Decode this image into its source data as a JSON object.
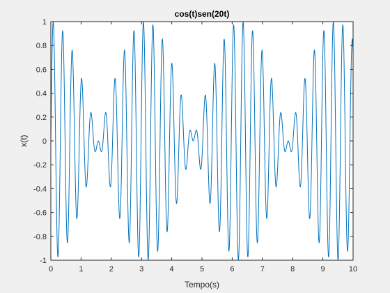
{
  "chart_data": {
    "type": "line",
    "title": "cos(t)sen(20t)",
    "xlabel": "Tempo(s)",
    "ylabel": "x(t)",
    "xlim": [
      0,
      10
    ],
    "ylim": [
      -1,
      1
    ],
    "x_ticks": [
      0,
      1,
      2,
      3,
      4,
      5,
      6,
      7,
      8,
      9,
      10
    ],
    "y_ticks": [
      -1,
      -0.8,
      -0.6,
      -0.4,
      -0.2,
      0,
      0.2,
      0.4,
      0.6,
      0.8,
      1
    ],
    "x_tick_labels": [
      "0",
      "1",
      "2",
      "3",
      "4",
      "5",
      "6",
      "7",
      "8",
      "9",
      "10"
    ],
    "y_tick_labels": [
      "-1",
      "-0.8",
      "-0.6",
      "-0.4",
      "-0.2",
      "0",
      "0.2",
      "0.4",
      "0.6",
      "0.8",
      "1"
    ],
    "grid": false,
    "series": [
      {
        "expression": "x(t) = cos(t) * sin(20t)",
        "x_start": 0,
        "x_end": 10,
        "color": "#0072bd"
      }
    ]
  },
  "colors": {
    "figure_background": "#f0f0f0",
    "axes_background": "#ffffff",
    "axis_line": "#262626",
    "series": "#0072bd"
  }
}
